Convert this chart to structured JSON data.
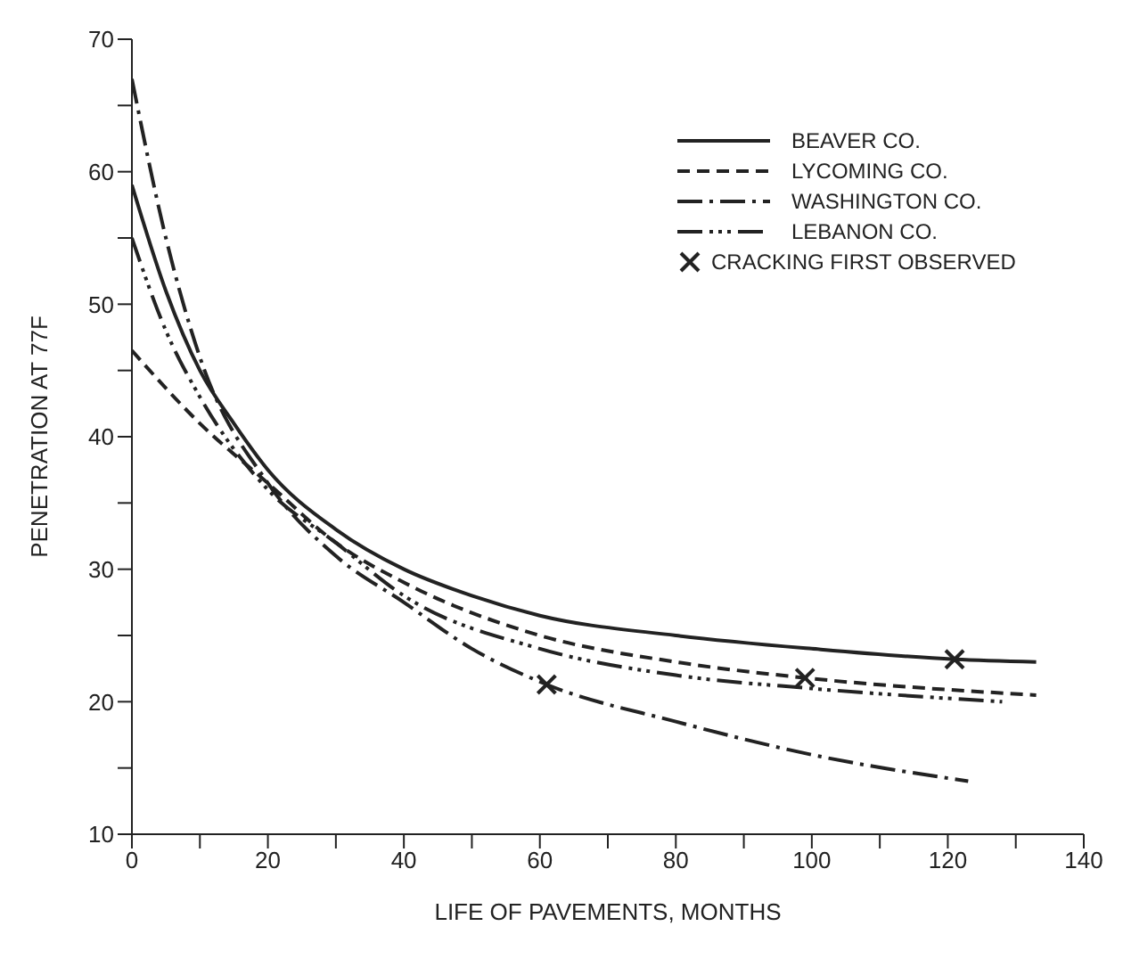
{
  "chart_data": {
    "type": "line",
    "xlabel": "LIFE OF PAVEMENTS, MONTHS",
    "ylabel": "PENETRATION AT 77F",
    "xlim": [
      0,
      140
    ],
    "ylim": [
      10,
      70
    ],
    "xticks": [
      0,
      {
        "value": 10,
        "label": null
      },
      20,
      {
        "value": 30,
        "label": null
      },
      40,
      {
        "value": 50,
        "label": null
      },
      60,
      {
        "value": 70,
        "label": null
      },
      80,
      {
        "value": 90,
        "label": null
      },
      100,
      {
        "value": 110,
        "label": null
      },
      120,
      {
        "value": 130,
        "label": null
      },
      140
    ],
    "yticks": [
      10,
      {
        "value": 15,
        "label": null
      },
      20,
      {
        "value": 25,
        "label": null
      },
      30,
      {
        "value": 35,
        "label": null
      },
      40,
      {
        "value": 45,
        "label": null
      },
      50,
      {
        "value": 55,
        "label": null
      },
      60,
      {
        "value": 65,
        "label": null
      },
      70
    ],
    "grid": false,
    "legend": "top right",
    "marker": "none",
    "series": [
      {
        "name": "BEAVER CO.",
        "color": "#222222",
        "line_style": "solid",
        "x": [
          0,
          5,
          10,
          15,
          20,
          30,
          40,
          50,
          60,
          80,
          100,
          121,
          133
        ],
        "values": [
          59,
          51,
          45,
          41,
          37.5,
          33,
          30,
          28,
          26.5,
          25,
          24,
          23.2,
          23
        ]
      },
      {
        "name": "LYCOMING CO.",
        "color": "#222222",
        "line_style": "dashed",
        "x": [
          0,
          10,
          20,
          30,
          40,
          60,
          80,
          99,
          133
        ],
        "values": [
          46.5,
          41,
          36.5,
          32,
          29,
          25,
          23,
          21.8,
          20.5
        ]
      },
      {
        "name": "WASHINGTON CO.",
        "color": "#222222",
        "line_style": "dashdot",
        "x": [
          0,
          5,
          10,
          20,
          30,
          40,
          50,
          61,
          80,
          100,
          123
        ],
        "values": [
          67,
          55,
          46,
          36.5,
          31,
          27.5,
          24,
          21.3,
          18.5,
          16,
          14
        ]
      },
      {
        "name": "LEBANON CO.",
        "color": "#222222",
        "line_style": "dashdotdot",
        "x": [
          0,
          5,
          10,
          20,
          30,
          40,
          60,
          80,
          100,
          128
        ],
        "values": [
          55,
          48,
          43,
          36,
          32,
          28,
          24,
          22,
          21,
          20
        ]
      },
      {
        "name": "CRACKING FIRST OBSERVED",
        "type": "scatter",
        "marker": "cross",
        "color": "#222222",
        "x": [
          61,
          99,
          121
        ],
        "values": [
          21.3,
          21.8,
          23.2
        ]
      }
    ]
  }
}
